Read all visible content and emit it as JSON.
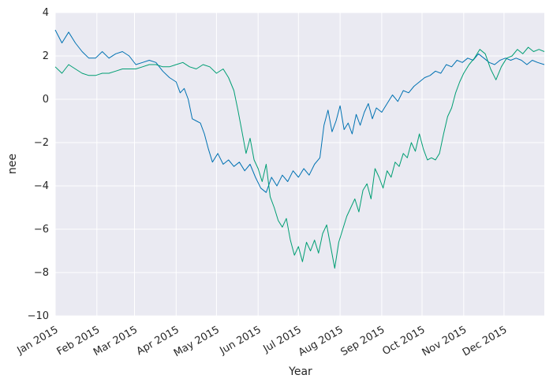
{
  "chart_data": {
    "type": "line",
    "title": "",
    "xlabel": "Year",
    "ylabel": "nee",
    "ylim": [
      -10,
      4
    ],
    "yticks": [
      -10,
      -8,
      -6,
      -4,
      -2,
      0,
      2,
      4
    ],
    "xticks": [
      {
        "date": "2015-01-01",
        "label": "Jan 2015"
      },
      {
        "date": "2015-02-01",
        "label": "Feb 2015"
      },
      {
        "date": "2015-03-01",
        "label": "Mar 2015"
      },
      {
        "date": "2015-04-01",
        "label": "Apr 2015"
      },
      {
        "date": "2015-05-01",
        "label": "May 2015"
      },
      {
        "date": "2015-06-01",
        "label": "Jun 2015"
      },
      {
        "date": "2015-07-01",
        "label": "Jul 2015"
      },
      {
        "date": "2015-08-01",
        "label": "Aug 2015"
      },
      {
        "date": "2015-09-01",
        "label": "Sep 2015"
      },
      {
        "date": "2015-10-01",
        "label": "Oct 2015"
      },
      {
        "date": "2015-11-01",
        "label": "Nov 2015"
      },
      {
        "date": "2015-12-01",
        "label": "Dec 2015"
      }
    ],
    "xlim": [
      "2015-01-01",
      "2015-12-31"
    ],
    "grid": true,
    "legend": false,
    "series": [
      {
        "color": "#0072b2",
        "points": [
          [
            "2015-01-01",
            3.2
          ],
          [
            "2015-01-06",
            2.6
          ],
          [
            "2015-01-11",
            3.1
          ],
          [
            "2015-01-16",
            2.6
          ],
          [
            "2015-01-21",
            2.2
          ],
          [
            "2015-01-26",
            1.9
          ],
          [
            "2015-01-31",
            1.9
          ],
          [
            "2015-02-05",
            2.2
          ],
          [
            "2015-02-10",
            1.9
          ],
          [
            "2015-02-15",
            2.1
          ],
          [
            "2015-02-20",
            2.2
          ],
          [
            "2015-02-25",
            2.0
          ],
          [
            "2015-03-02",
            1.6
          ],
          [
            "2015-03-07",
            1.7
          ],
          [
            "2015-03-12",
            1.8
          ],
          [
            "2015-03-17",
            1.7
          ],
          [
            "2015-03-22",
            1.3
          ],
          [
            "2015-03-27",
            1.0
          ],
          [
            "2015-04-01",
            0.8
          ],
          [
            "2015-04-04",
            0.3
          ],
          [
            "2015-04-07",
            0.5
          ],
          [
            "2015-04-10",
            0.0
          ],
          [
            "2015-04-13",
            -0.9
          ],
          [
            "2015-04-16",
            -1.0
          ],
          [
            "2015-04-19",
            -1.1
          ],
          [
            "2015-04-22",
            -1.6
          ],
          [
            "2015-04-25",
            -2.3
          ],
          [
            "2015-04-28",
            -2.9
          ],
          [
            "2015-05-02",
            -2.5
          ],
          [
            "2015-05-06",
            -3.0
          ],
          [
            "2015-05-10",
            -2.8
          ],
          [
            "2015-05-14",
            -3.1
          ],
          [
            "2015-05-18",
            -2.9
          ],
          [
            "2015-05-22",
            -3.3
          ],
          [
            "2015-05-26",
            -3.0
          ],
          [
            "2015-05-30",
            -3.6
          ],
          [
            "2015-06-03",
            -4.1
          ],
          [
            "2015-06-07",
            -4.3
          ],
          [
            "2015-06-11",
            -3.6
          ],
          [
            "2015-06-15",
            -4.0
          ],
          [
            "2015-06-19",
            -3.5
          ],
          [
            "2015-06-23",
            -3.8
          ],
          [
            "2015-06-27",
            -3.3
          ],
          [
            "2015-07-01",
            -3.6
          ],
          [
            "2015-07-05",
            -3.2
          ],
          [
            "2015-07-09",
            -3.5
          ],
          [
            "2015-07-13",
            -3.0
          ],
          [
            "2015-07-17",
            -2.7
          ],
          [
            "2015-07-20",
            -1.2
          ],
          [
            "2015-07-23",
            -0.5
          ],
          [
            "2015-07-26",
            -1.5
          ],
          [
            "2015-07-29",
            -1.0
          ],
          [
            "2015-08-01",
            -0.3
          ],
          [
            "2015-08-04",
            -1.4
          ],
          [
            "2015-08-07",
            -1.1
          ],
          [
            "2015-08-10",
            -1.6
          ],
          [
            "2015-08-13",
            -0.7
          ],
          [
            "2015-08-16",
            -1.2
          ],
          [
            "2015-08-19",
            -0.6
          ],
          [
            "2015-08-22",
            -0.2
          ],
          [
            "2015-08-25",
            -0.9
          ],
          [
            "2015-08-28",
            -0.4
          ],
          [
            "2015-09-01",
            -0.6
          ],
          [
            "2015-09-05",
            -0.2
          ],
          [
            "2015-09-09",
            0.2
          ],
          [
            "2015-09-13",
            -0.1
          ],
          [
            "2015-09-17",
            0.4
          ],
          [
            "2015-09-21",
            0.3
          ],
          [
            "2015-09-25",
            0.6
          ],
          [
            "2015-09-29",
            0.8
          ],
          [
            "2015-10-03",
            1.0
          ],
          [
            "2015-10-07",
            1.1
          ],
          [
            "2015-10-11",
            1.3
          ],
          [
            "2015-10-15",
            1.2
          ],
          [
            "2015-10-19",
            1.6
          ],
          [
            "2015-10-23",
            1.5
          ],
          [
            "2015-10-27",
            1.8
          ],
          [
            "2015-10-31",
            1.7
          ],
          [
            "2015-11-04",
            1.9
          ],
          [
            "2015-11-08",
            1.8
          ],
          [
            "2015-11-12",
            2.1
          ],
          [
            "2015-11-16",
            1.9
          ],
          [
            "2015-11-20",
            1.7
          ],
          [
            "2015-11-24",
            1.6
          ],
          [
            "2015-11-28",
            1.8
          ],
          [
            "2015-12-02",
            1.9
          ],
          [
            "2015-12-06",
            1.8
          ],
          [
            "2015-12-10",
            1.9
          ],
          [
            "2015-12-14",
            1.8
          ],
          [
            "2015-12-18",
            1.6
          ],
          [
            "2015-12-22",
            1.8
          ],
          [
            "2015-12-26",
            1.7
          ],
          [
            "2015-12-31",
            1.6
          ]
        ]
      },
      {
        "color": "#009e73",
        "points": [
          [
            "2015-01-01",
            1.5
          ],
          [
            "2015-01-06",
            1.2
          ],
          [
            "2015-01-11",
            1.6
          ],
          [
            "2015-01-16",
            1.4
          ],
          [
            "2015-01-21",
            1.2
          ],
          [
            "2015-01-26",
            1.1
          ],
          [
            "2015-01-31",
            1.1
          ],
          [
            "2015-02-05",
            1.2
          ],
          [
            "2015-02-10",
            1.2
          ],
          [
            "2015-02-15",
            1.3
          ],
          [
            "2015-02-20",
            1.4
          ],
          [
            "2015-02-25",
            1.4
          ],
          [
            "2015-03-02",
            1.4
          ],
          [
            "2015-03-07",
            1.5
          ],
          [
            "2015-03-12",
            1.6
          ],
          [
            "2015-03-17",
            1.6
          ],
          [
            "2015-03-22",
            1.5
          ],
          [
            "2015-03-27",
            1.5
          ],
          [
            "2015-04-01",
            1.6
          ],
          [
            "2015-04-06",
            1.7
          ],
          [
            "2015-04-11",
            1.5
          ],
          [
            "2015-04-16",
            1.4
          ],
          [
            "2015-04-21",
            1.6
          ],
          [
            "2015-04-26",
            1.5
          ],
          [
            "2015-05-01",
            1.2
          ],
          [
            "2015-05-06",
            1.4
          ],
          [
            "2015-05-10",
            1.0
          ],
          [
            "2015-05-14",
            0.4
          ],
          [
            "2015-05-17",
            -0.5
          ],
          [
            "2015-05-20",
            -1.5
          ],
          [
            "2015-05-23",
            -2.5
          ],
          [
            "2015-05-26",
            -1.8
          ],
          [
            "2015-05-29",
            -2.8
          ],
          [
            "2015-06-01",
            -3.2
          ],
          [
            "2015-06-04",
            -3.8
          ],
          [
            "2015-06-07",
            -3.0
          ],
          [
            "2015-06-10",
            -4.5
          ],
          [
            "2015-06-13",
            -5.0
          ],
          [
            "2015-06-16",
            -5.6
          ],
          [
            "2015-06-19",
            -5.9
          ],
          [
            "2015-06-22",
            -5.5
          ],
          [
            "2015-06-25",
            -6.5
          ],
          [
            "2015-06-28",
            -7.2
          ],
          [
            "2015-07-01",
            -6.8
          ],
          [
            "2015-07-04",
            -7.5
          ],
          [
            "2015-07-07",
            -6.6
          ],
          [
            "2015-07-10",
            -7.0
          ],
          [
            "2015-07-13",
            -6.5
          ],
          [
            "2015-07-16",
            -7.1
          ],
          [
            "2015-07-19",
            -6.2
          ],
          [
            "2015-07-22",
            -5.8
          ],
          [
            "2015-07-25",
            -6.8
          ],
          [
            "2015-07-28",
            -7.8
          ],
          [
            "2015-07-31",
            -6.6
          ],
          [
            "2015-08-03",
            -6.0
          ],
          [
            "2015-08-06",
            -5.4
          ],
          [
            "2015-08-09",
            -5.0
          ],
          [
            "2015-08-12",
            -4.6
          ],
          [
            "2015-08-15",
            -5.2
          ],
          [
            "2015-08-18",
            -4.2
          ],
          [
            "2015-08-21",
            -3.9
          ],
          [
            "2015-08-24",
            -4.6
          ],
          [
            "2015-08-27",
            -3.2
          ],
          [
            "2015-08-30",
            -3.6
          ],
          [
            "2015-09-02",
            -4.1
          ],
          [
            "2015-09-05",
            -3.3
          ],
          [
            "2015-09-08",
            -3.6
          ],
          [
            "2015-09-11",
            -2.9
          ],
          [
            "2015-09-14",
            -3.1
          ],
          [
            "2015-09-17",
            -2.5
          ],
          [
            "2015-09-20",
            -2.7
          ],
          [
            "2015-09-23",
            -2.0
          ],
          [
            "2015-09-26",
            -2.4
          ],
          [
            "2015-09-29",
            -1.6
          ],
          [
            "2015-10-02",
            -2.3
          ],
          [
            "2015-10-05",
            -2.8
          ],
          [
            "2015-10-08",
            -2.7
          ],
          [
            "2015-10-11",
            -2.8
          ],
          [
            "2015-10-14",
            -2.5
          ],
          [
            "2015-10-17",
            -1.6
          ],
          [
            "2015-10-20",
            -0.8
          ],
          [
            "2015-10-23",
            -0.4
          ],
          [
            "2015-10-26",
            0.3
          ],
          [
            "2015-10-29",
            0.8
          ],
          [
            "2015-11-01",
            1.2
          ],
          [
            "2015-11-05",
            1.6
          ],
          [
            "2015-11-09",
            1.9
          ],
          [
            "2015-11-13",
            2.3
          ],
          [
            "2015-11-17",
            2.1
          ],
          [
            "2015-11-21",
            1.4
          ],
          [
            "2015-11-25",
            0.9
          ],
          [
            "2015-11-29",
            1.5
          ],
          [
            "2015-12-03",
            1.9
          ],
          [
            "2015-12-07",
            2.0
          ],
          [
            "2015-12-11",
            2.3
          ],
          [
            "2015-12-15",
            2.1
          ],
          [
            "2015-12-19",
            2.4
          ],
          [
            "2015-12-23",
            2.2
          ],
          [
            "2015-12-27",
            2.3
          ],
          [
            "2015-12-31",
            2.2
          ]
        ]
      }
    ]
  }
}
